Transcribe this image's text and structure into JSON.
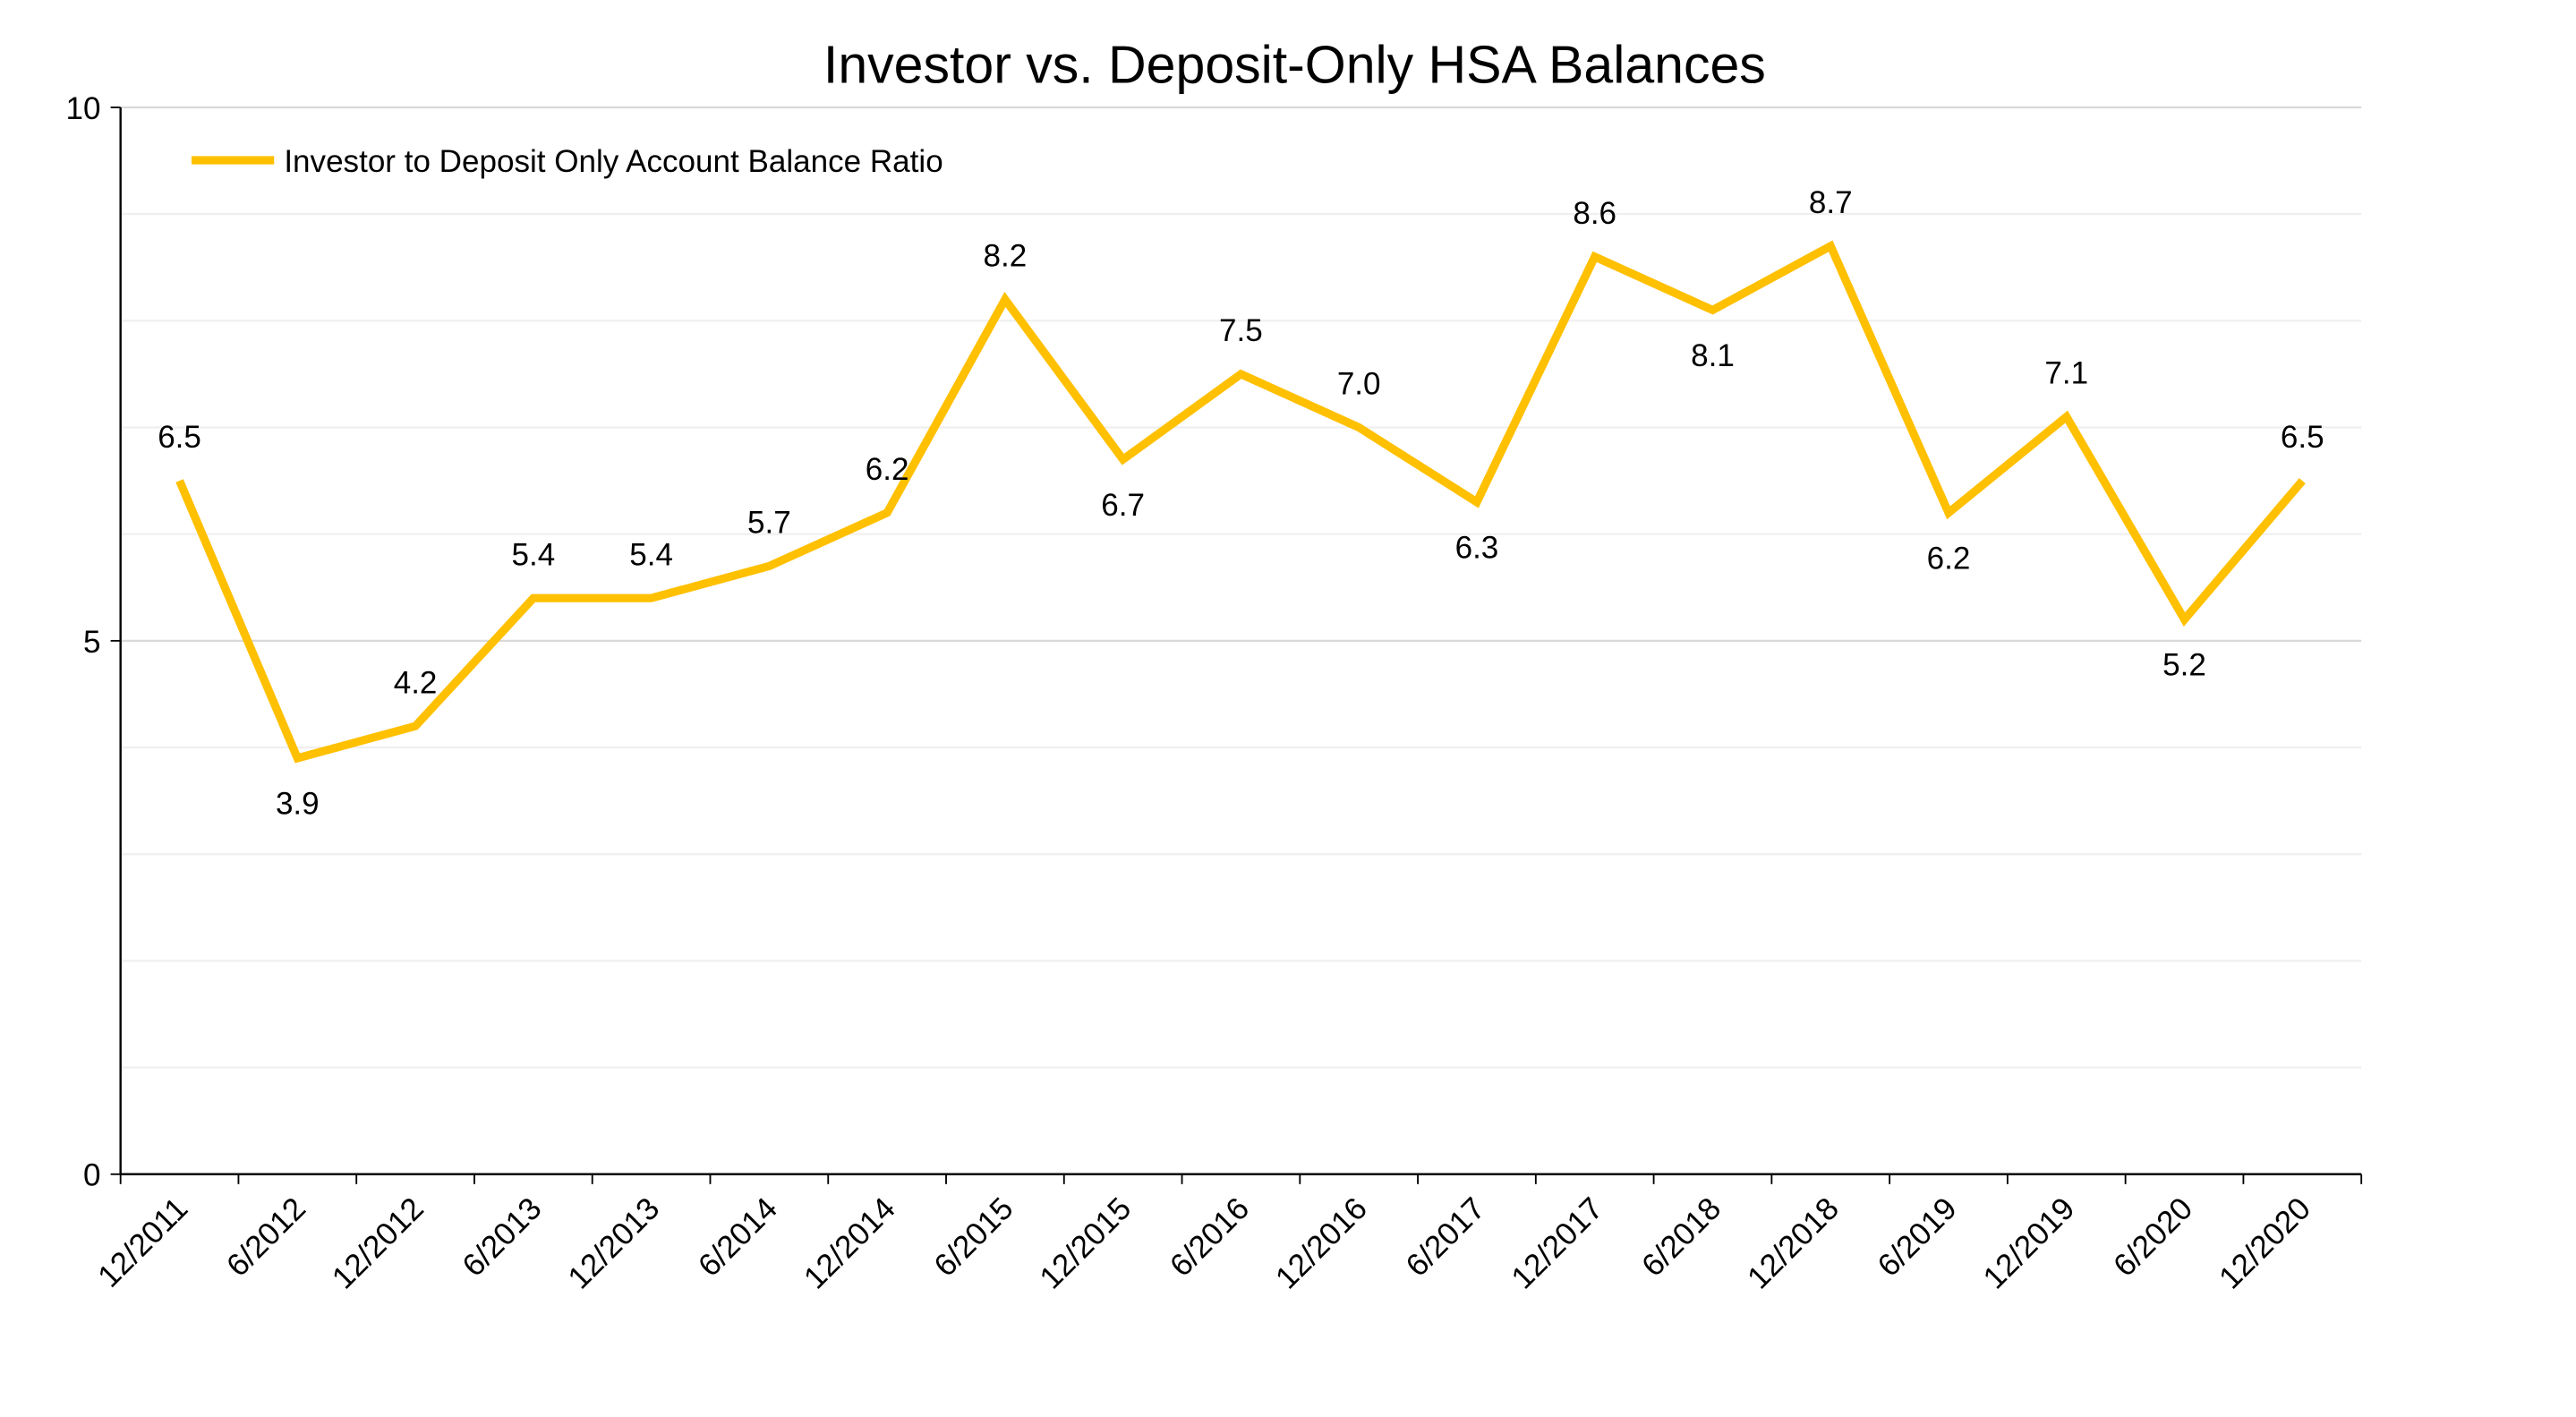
{
  "chart_data": {
    "type": "line",
    "title": "Investor vs. Deposit-Only HSA Balances",
    "xlabel": "",
    "ylabel": "",
    "ylim": [
      0,
      10
    ],
    "yticks": [
      "0",
      "5",
      "10"
    ],
    "grid": true,
    "legend_position": "top-left",
    "categories": [
      "12/2011",
      "6/2012",
      "12/2012",
      "6/2013",
      "12/2013",
      "6/2014",
      "12/2014",
      "6/2015",
      "12/2015",
      "6/2016",
      "12/2016",
      "6/2017",
      "12/2017",
      "6/2018",
      "12/2018",
      "6/2019",
      "12/2019",
      "6/2020",
      "12/2020"
    ],
    "series": [
      {
        "name": "Investor to Deposit Only Account Balance Ratio",
        "color": "#FFC000",
        "values": [
          6.5,
          3.9,
          4.2,
          5.4,
          5.4,
          5.7,
          6.2,
          8.2,
          6.7,
          7.5,
          7.0,
          6.3,
          8.6,
          8.1,
          8.7,
          6.2,
          7.1,
          5.2,
          6.5
        ],
        "labels": [
          "6.5",
          "3.9",
          "4.2",
          "5.4",
          "5.4",
          "5.7",
          "6.2",
          "8.2",
          "6.7",
          "7.5",
          "7.0",
          "6.3",
          "8.6",
          "8.1",
          "8.7",
          "6.2",
          "7.1",
          "5.2",
          "6.5"
        ]
      }
    ]
  }
}
